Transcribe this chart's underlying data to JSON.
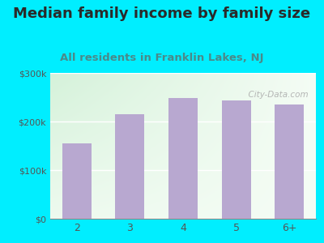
{
  "title": "Median family income by family size",
  "subtitle": "All residents in Franklin Lakes, NJ",
  "categories": [
    "2",
    "3",
    "4",
    "5",
    "6+"
  ],
  "values": [
    155000,
    215000,
    248000,
    244000,
    235000
  ],
  "bar_color": "#b8a8d0",
  "background_outer": "#00eeff",
  "title_color": "#2a2a2a",
  "subtitle_color": "#4a8a8a",
  "tick_color": "#555555",
  "ylim": [
    0,
    300000
  ],
  "yticks": [
    0,
    100000,
    200000,
    300000
  ],
  "ytick_labels": [
    "$0",
    "$100k",
    "$200k",
    "$300k"
  ],
  "title_fontsize": 13,
  "subtitle_fontsize": 9.5,
  "watermark": "  City-Data.com"
}
